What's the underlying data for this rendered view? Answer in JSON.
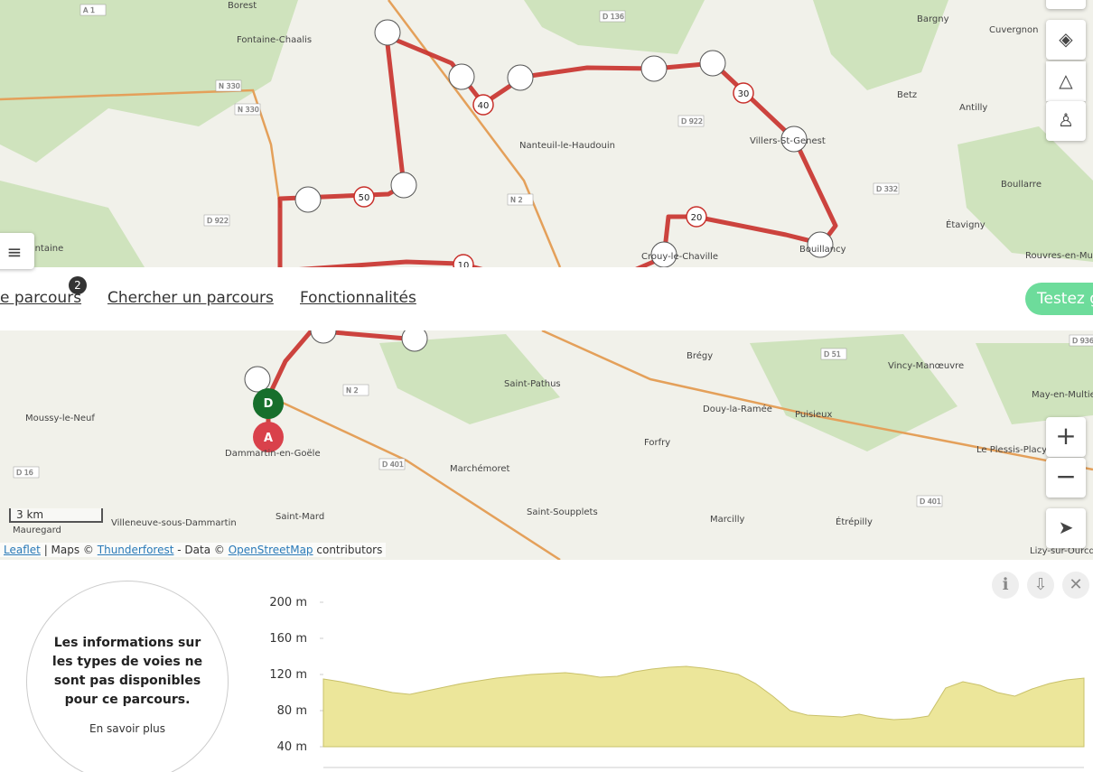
{
  "map": {
    "labels": [
      "Borest",
      "Fontaine-Chaalis",
      "Bargny",
      "Cuvergnon",
      "Nanteuil-le-Haudouin",
      "Betz",
      "Antilly",
      "Villers-St-Genest",
      "Boullarre",
      "Étavigny",
      "Mortefontaine",
      "Rouvres-en-Mu",
      "Brégy",
      "Vincy-Manœuvre",
      "Saint-Pathus",
      "Douy-la-Ramée",
      "May-en-Multie",
      "Moussy-le-Neuf",
      "Dammartin-en-Goële",
      "Puisieux",
      "Forfry",
      "Marchémoret",
      "Le Plessis-Placy",
      "Saint-Mard",
      "Saint-Soupplets",
      "Marcilly",
      "Étrépilly",
      "Villeneuve-sous-Dammartin",
      "Mauregard",
      "Lizy-sur-Ourcq",
      "Crouy-le-Chaville",
      "Bouillancy"
    ],
    "roads": [
      "A 1",
      "N 330",
      "N 330",
      "D 136",
      "D 922",
      "D 922",
      "D 332",
      "N 2",
      "N 2",
      "D 51",
      "D 401",
      "D 16",
      "D 401",
      "D 936"
    ],
    "km_markers": [
      "10",
      "20",
      "30",
      "40",
      "50"
    ],
    "start": "D",
    "end": "A",
    "scale": "3 km"
  },
  "attribution": {
    "leaflet": "Leaflet",
    "maps": "| Maps ©",
    "thunderforest": "Thunderforest",
    "data": "- Data ©",
    "osm": "OpenStreetMap",
    "contributors": "contributors"
  },
  "nav": {
    "my_routes": "e parcours",
    "badge": "2",
    "search": "Chercher un parcours",
    "features": "Fonctionnalités",
    "try": "Testez g"
  },
  "info": {
    "text": "Les informations sur les types de voies ne sont pas disponibles pour ce parcours.",
    "more": "En savoir plus"
  },
  "elevation": {
    "ylim": [
      40,
      200
    ],
    "yticks": [
      {
        "value": 40,
        "label": "40 m"
      },
      {
        "value": 80,
        "label": "80 m"
      },
      {
        "value": 120,
        "label": "120 m"
      },
      {
        "value": 160,
        "label": "160 m"
      },
      {
        "value": 200,
        "label": "200 m"
      }
    ],
    "values": [
      115,
      112,
      108,
      104,
      100,
      98,
      102,
      106,
      110,
      113,
      116,
      118,
      120,
      121,
      122,
      120,
      117,
      118,
      123,
      126,
      128,
      129,
      127,
      124,
      120,
      110,
      96,
      80,
      75,
      74,
      73,
      76,
      72,
      70,
      71,
      74,
      105,
      112,
      108,
      100,
      96,
      104,
      110,
      114,
      116
    ]
  }
}
